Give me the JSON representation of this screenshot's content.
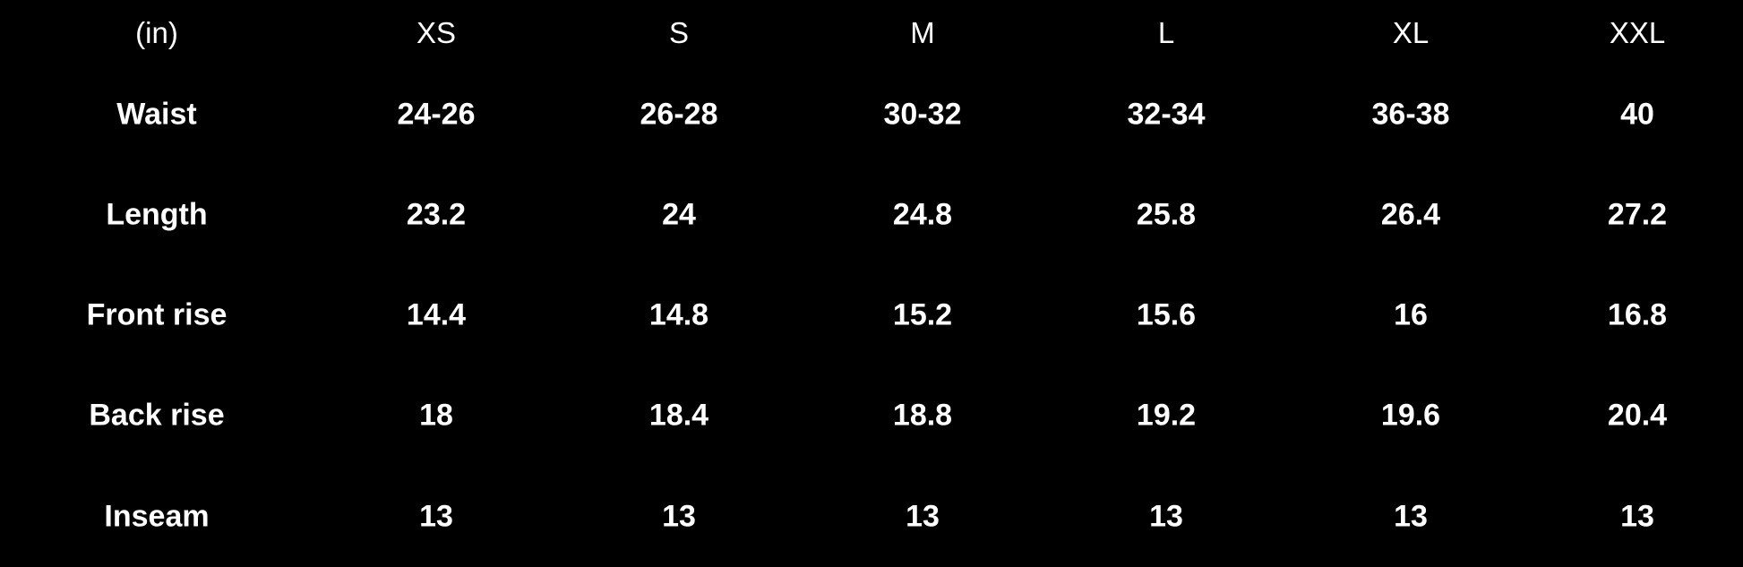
{
  "table": {
    "unit_label": "(in)",
    "sizes": [
      "XS",
      "S",
      "M",
      "L",
      "XL",
      "XXL"
    ],
    "rows": [
      {
        "label": "Waist",
        "values": [
          "24-26",
          "26-28",
          "30-32",
          "32-34",
          "36-38",
          "40"
        ]
      },
      {
        "label": "Length",
        "values": [
          "23.2",
          "24",
          "24.8",
          "25.8",
          "26.4",
          "27.2"
        ]
      },
      {
        "label": "Front rise",
        "values": [
          "14.4",
          "14.8",
          "15.2",
          "15.6",
          "16",
          "16.8"
        ]
      },
      {
        "label": "Back rise",
        "values": [
          "18",
          "18.4",
          "18.8",
          "19.2",
          "19.6",
          "20.4"
        ]
      },
      {
        "label": "Inseam",
        "values": [
          "13",
          "13",
          "13",
          "13",
          "13",
          "13"
        ]
      }
    ]
  }
}
